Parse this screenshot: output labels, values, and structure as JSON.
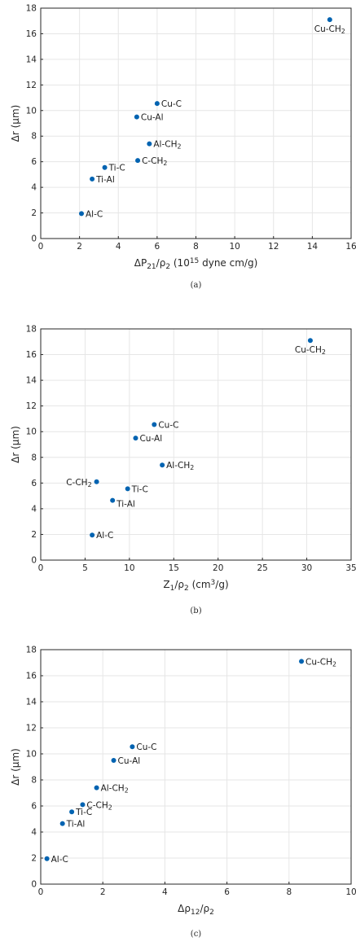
{
  "chart_data": [
    {
      "type": "scatter",
      "caption": "(a)",
      "ylabel": "Δr (μm)",
      "xlabel": "ΔP21/ρ2 (10^15 dyne cm/g)",
      "xlim": [
        0,
        16
      ],
      "ylim": [
        0,
        18
      ],
      "xticks": [
        0,
        2,
        4,
        6,
        8,
        10,
        12,
        14,
        16
      ],
      "yticks": [
        0,
        2,
        4,
        6,
        8,
        10,
        12,
        14,
        16,
        18
      ],
      "grid": true,
      "points": [
        {
          "label": "Cu-CH2",
          "x": 14.9,
          "y": 17.1,
          "pos": "below"
        },
        {
          "label": "Cu-C",
          "x": 6.0,
          "y": 10.55,
          "pos": "right"
        },
        {
          "label": "Cu-Al",
          "x": 4.95,
          "y": 9.5,
          "pos": "right"
        },
        {
          "label": "Al-CH2",
          "x": 5.6,
          "y": 7.4,
          "pos": "right"
        },
        {
          "label": "C-CH2",
          "x": 5.0,
          "y": 6.1,
          "pos": "right"
        },
        {
          "label": "Ti-C",
          "x": 3.3,
          "y": 5.55,
          "pos": "right"
        },
        {
          "label": "Ti-Al",
          "x": 2.65,
          "y": 4.65,
          "pos": "right"
        },
        {
          "label": "Al-C",
          "x": 2.1,
          "y": 1.95,
          "pos": "right"
        }
      ]
    },
    {
      "type": "scatter",
      "caption": "(b)",
      "ylabel": "Δr (μm)",
      "xlabel": "Z1/ρ2 (cm3/g)",
      "xlim": [
        0,
        35
      ],
      "ylim": [
        0,
        18
      ],
      "xticks": [
        0,
        5,
        10,
        15,
        20,
        25,
        30,
        35
      ],
      "yticks": [
        0,
        2,
        4,
        6,
        8,
        10,
        12,
        14,
        16,
        18
      ],
      "grid": true,
      "points": [
        {
          "label": "Cu-CH2",
          "x": 30.4,
          "y": 17.1,
          "pos": "below"
        },
        {
          "label": "Cu-C",
          "x": 12.8,
          "y": 10.55,
          "pos": "right"
        },
        {
          "label": "Cu-Al",
          "x": 10.7,
          "y": 9.5,
          "pos": "right"
        },
        {
          "label": "Al-CH2",
          "x": 13.7,
          "y": 7.4,
          "pos": "right"
        },
        {
          "label": "C-CH2",
          "x": 6.3,
          "y": 6.1,
          "pos": "left"
        },
        {
          "label": "Ti-C",
          "x": 9.8,
          "y": 5.55,
          "pos": "right"
        },
        {
          "label": "Ti-Al",
          "x": 8.1,
          "y": 4.65,
          "pos": "belowright"
        },
        {
          "label": "Al-C",
          "x": 5.8,
          "y": 1.95,
          "pos": "right"
        }
      ]
    },
    {
      "type": "scatter",
      "caption": "(c)",
      "ylabel": "Δr (μm)",
      "xlabel": "Δρ12/ρ2",
      "xlim": [
        0,
        10
      ],
      "ylim": [
        0,
        18
      ],
      "xticks": [
        0,
        2,
        4,
        6,
        8,
        10
      ],
      "yticks": [
        0,
        2,
        4,
        6,
        8,
        10,
        12,
        14,
        16,
        18
      ],
      "grid": true,
      "points": [
        {
          "label": "Cu-CH2",
          "x": 8.4,
          "y": 17.1,
          "pos": "right"
        },
        {
          "label": "Cu-C",
          "x": 2.95,
          "y": 10.55,
          "pos": "right"
        },
        {
          "label": "Cu-Al",
          "x": 2.35,
          "y": 9.5,
          "pos": "right"
        },
        {
          "label": "Al-CH2",
          "x": 1.8,
          "y": 7.4,
          "pos": "right"
        },
        {
          "label": "C-CH2",
          "x": 1.35,
          "y": 6.1,
          "pos": "right"
        },
        {
          "label": "Ti-C",
          "x": 1.0,
          "y": 5.55,
          "pos": "right"
        },
        {
          "label": "Ti-Al",
          "x": 0.7,
          "y": 4.65,
          "pos": "right"
        },
        {
          "label": "Al-C",
          "x": 0.2,
          "y": 1.95,
          "pos": "right"
        }
      ]
    }
  ],
  "colors": {
    "marker": "#0063b1",
    "grid": "#e6e6e6",
    "axis": "#262626"
  }
}
